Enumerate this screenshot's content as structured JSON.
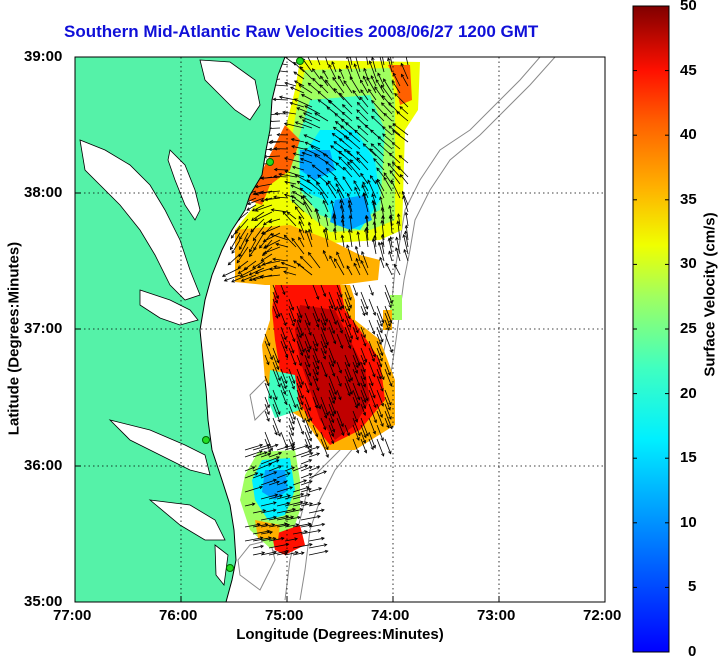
{
  "title": "Southern Mid-Atlantic Raw Velocities 2008/06/27 1200 GMT",
  "axes": {
    "xlabel": "Longitude (Degrees:Minutes)",
    "ylabel": "Latitude (Degrees:Minutes)",
    "x_ticks": [
      "77:00",
      "76:00",
      "75:00",
      "74:00",
      "73:00",
      "72:00"
    ],
    "y_ticks": [
      "39:00",
      "38:00",
      "37:00",
      "36:00",
      "35:00"
    ],
    "x_range_deg_west": [
      77,
      72
    ],
    "y_range_deg_north": [
      35,
      39
    ],
    "grid": "dotted"
  },
  "colorbar": {
    "label": "Surface Velocity (cm/s)",
    "ticks": [
      "50",
      "45",
      "40",
      "35",
      "30",
      "25",
      "20",
      "15",
      "10",
      "5",
      "0"
    ],
    "range": [
      0,
      50
    ],
    "colormap": "jet"
  },
  "colors": {
    "title": "#1010d8",
    "land": "#55f2a8",
    "coast_outline": "#000000",
    "bathymetry": "#8a8a8a",
    "station_marker": "#22dd22"
  }
}
